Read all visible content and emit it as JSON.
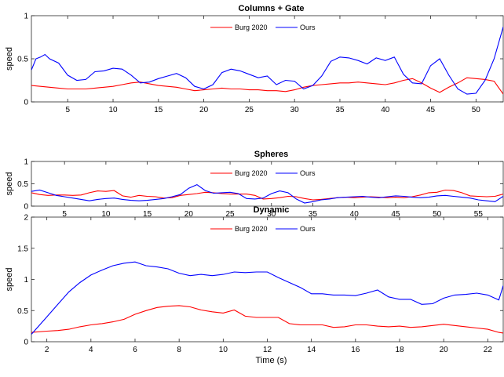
{
  "chart_data": [
    {
      "type": "line",
      "title": "Columns + Gate",
      "xlabel": "",
      "ylabel": "speed",
      "xlim": [
        1,
        53
      ],
      "ylim": [
        0,
        1
      ],
      "xticks": [
        5,
        10,
        15,
        20,
        25,
        30,
        35,
        40,
        45,
        50
      ],
      "yticks": [
        0,
        0.5,
        1
      ],
      "legend": "top-center",
      "series": [
        {
          "name": "Burg 2020",
          "color": "#ff0000",
          "x": [
            1,
            2,
            3,
            4,
            5,
            6,
            7,
            8,
            9,
            10,
            11,
            12,
            13,
            14,
            15,
            16,
            17,
            18,
            19,
            20,
            21,
            22,
            23,
            24,
            25,
            26,
            27,
            28,
            29,
            30,
            31,
            32,
            33,
            34,
            35,
            36,
            37,
            38,
            39,
            40,
            41,
            42,
            43,
            44,
            45,
            46,
            47,
            48,
            49,
            50,
            51,
            52,
            53
          ],
          "y": [
            0.19,
            0.18,
            0.17,
            0.16,
            0.15,
            0.15,
            0.15,
            0.16,
            0.17,
            0.18,
            0.2,
            0.22,
            0.23,
            0.21,
            0.19,
            0.18,
            0.17,
            0.15,
            0.13,
            0.14,
            0.15,
            0.16,
            0.15,
            0.15,
            0.14,
            0.14,
            0.13,
            0.13,
            0.12,
            0.14,
            0.17,
            0.19,
            0.2,
            0.21,
            0.22,
            0.22,
            0.23,
            0.22,
            0.21,
            0.2,
            0.22,
            0.25,
            0.27,
            0.22,
            0.16,
            0.11,
            0.17,
            0.22,
            0.28,
            0.27,
            0.26,
            0.24,
            0.09
          ]
        },
        {
          "name": "Ours",
          "color": "#0000ff",
          "x": [
            1,
            1.5,
            2,
            2.5,
            3,
            4,
            5,
            6,
            7,
            8,
            9,
            10,
            11,
            12,
            13,
            14,
            15,
            16,
            17,
            18,
            19,
            20,
            21,
            22,
            23,
            24,
            25,
            26,
            27,
            28,
            29,
            30,
            31,
            32,
            33,
            34,
            35,
            36,
            37,
            38,
            39,
            40,
            41,
            42,
            43,
            44,
            45,
            46,
            47,
            48,
            49,
            50,
            51,
            52,
            53
          ],
          "y": [
            0.37,
            0.5,
            0.52,
            0.55,
            0.5,
            0.45,
            0.31,
            0.25,
            0.26,
            0.35,
            0.36,
            0.39,
            0.38,
            0.31,
            0.22,
            0.23,
            0.27,
            0.3,
            0.33,
            0.28,
            0.18,
            0.15,
            0.2,
            0.34,
            0.38,
            0.36,
            0.32,
            0.28,
            0.3,
            0.2,
            0.25,
            0.24,
            0.15,
            0.19,
            0.3,
            0.47,
            0.52,
            0.51,
            0.48,
            0.44,
            0.51,
            0.48,
            0.52,
            0.32,
            0.22,
            0.21,
            0.42,
            0.5,
            0.31,
            0.15,
            0.09,
            0.1,
            0.25,
            0.5,
            0.87
          ]
        }
      ]
    },
    {
      "type": "line",
      "title": "Spheres",
      "xlabel": "",
      "ylabel": "speed",
      "xlim": [
        1,
        58
      ],
      "ylim": [
        0,
        1
      ],
      "xticks": [
        5,
        10,
        15,
        20,
        25,
        30,
        35,
        40,
        45,
        50,
        55
      ],
      "yticks": [
        0,
        0.5,
        1
      ],
      "legend": "top-center",
      "series": [
        {
          "name": "Burg 2020",
          "color": "#ff0000",
          "x": [
            1,
            2,
            3,
            4,
            5,
            6,
            7,
            8,
            9,
            10,
            11,
            12,
            13,
            14,
            15,
            16,
            17,
            18,
            19,
            20,
            21,
            22,
            23,
            24,
            25,
            26,
            27,
            28,
            29,
            30,
            31,
            32,
            33,
            34,
            35,
            36,
            37,
            38,
            39,
            40,
            41,
            42,
            43,
            44,
            45,
            46,
            47,
            48,
            49,
            50,
            51,
            52,
            53,
            54,
            55,
            56,
            57,
            58
          ],
          "y": [
            0.3,
            0.26,
            0.24,
            0.25,
            0.25,
            0.24,
            0.25,
            0.3,
            0.34,
            0.33,
            0.35,
            0.23,
            0.2,
            0.24,
            0.22,
            0.21,
            0.18,
            0.19,
            0.24,
            0.26,
            0.28,
            0.31,
            0.3,
            0.28,
            0.27,
            0.27,
            0.27,
            0.24,
            0.16,
            0.17,
            0.19,
            0.22,
            0.21,
            0.17,
            0.14,
            0.15,
            0.17,
            0.19,
            0.2,
            0.19,
            0.2,
            0.21,
            0.2,
            0.19,
            0.2,
            0.19,
            0.21,
            0.25,
            0.3,
            0.31,
            0.36,
            0.35,
            0.3,
            0.23,
            0.22,
            0.21,
            0.22,
            0.27
          ]
        },
        {
          "name": "Ours",
          "color": "#0000ff",
          "x": [
            1,
            2,
            3,
            4,
            5,
            6,
            7,
            8,
            9,
            10,
            11,
            12,
            13,
            14,
            15,
            16,
            17,
            18,
            19,
            20,
            21,
            22,
            23,
            24,
            25,
            26,
            27,
            28,
            29,
            30,
            31,
            32,
            33,
            34,
            35,
            36,
            37,
            38,
            39,
            40,
            41,
            42,
            43,
            44,
            45,
            46,
            47,
            48,
            49,
            50,
            51,
            52,
            53,
            54,
            55,
            56,
            57,
            58
          ],
          "y": [
            0.33,
            0.36,
            0.3,
            0.24,
            0.21,
            0.18,
            0.15,
            0.12,
            0.15,
            0.17,
            0.18,
            0.15,
            0.13,
            0.12,
            0.13,
            0.15,
            0.17,
            0.21,
            0.26,
            0.4,
            0.48,
            0.35,
            0.29,
            0.3,
            0.31,
            0.28,
            0.17,
            0.16,
            0.18,
            0.28,
            0.34,
            0.3,
            0.16,
            0.07,
            0.1,
            0.14,
            0.16,
            0.19,
            0.2,
            0.21,
            0.22,
            0.2,
            0.19,
            0.21,
            0.23,
            0.22,
            0.2,
            0.19,
            0.2,
            0.23,
            0.24,
            0.22,
            0.2,
            0.18,
            0.14,
            0.12,
            0.1,
            0.22
          ]
        }
      ]
    },
    {
      "type": "line",
      "title": "Dynamic",
      "xlabel": "Time (s)",
      "ylabel": "speed",
      "xlim": [
        1.3,
        22.7
      ],
      "ylim": [
        0,
        2
      ],
      "xticks": [
        2,
        4,
        6,
        8,
        10,
        12,
        14,
        16,
        18,
        20,
        22
      ],
      "yticks": [
        0,
        0.5,
        1,
        1.5,
        2
      ],
      "legend": "top-center",
      "series": [
        {
          "name": "Burg 2020",
          "color": "#ff0000",
          "x": [
            1.3,
            2,
            2.5,
            3,
            3.5,
            4,
            4.5,
            5,
            5.5,
            6,
            6.5,
            7,
            7.5,
            8,
            8.5,
            9,
            9.5,
            10,
            10.5,
            11,
            11.5,
            12,
            12.5,
            13,
            13.5,
            14,
            14.5,
            15,
            15.5,
            16,
            16.5,
            17,
            17.5,
            18,
            18.5,
            19,
            19.5,
            20,
            20.5,
            21,
            21.5,
            22,
            22.5,
            22.7
          ],
          "y": [
            0.15,
            0.17,
            0.18,
            0.2,
            0.24,
            0.27,
            0.29,
            0.32,
            0.36,
            0.44,
            0.5,
            0.55,
            0.57,
            0.58,
            0.56,
            0.51,
            0.48,
            0.46,
            0.51,
            0.41,
            0.39,
            0.39,
            0.39,
            0.29,
            0.27,
            0.27,
            0.27,
            0.23,
            0.24,
            0.27,
            0.27,
            0.25,
            0.24,
            0.25,
            0.23,
            0.24,
            0.26,
            0.28,
            0.26,
            0.24,
            0.22,
            0.2,
            0.15,
            0.14
          ]
        },
        {
          "name": "Ours",
          "color": "#0000ff",
          "x": [
            1.3,
            2,
            2.5,
            3,
            3.5,
            4,
            4.5,
            5,
            5.5,
            6,
            6.5,
            7,
            7.5,
            8,
            8.5,
            9,
            9.5,
            10,
            10.5,
            11,
            11.5,
            12,
            12.5,
            13,
            13.5,
            14,
            14.5,
            15,
            15.5,
            16,
            16.5,
            17,
            17.5,
            18,
            18.5,
            19,
            19.5,
            20,
            20.5,
            21,
            21.5,
            22,
            22.5,
            22.7
          ],
          "y": [
            0.12,
            0.4,
            0.6,
            0.8,
            0.95,
            1.07,
            1.15,
            1.22,
            1.26,
            1.28,
            1.22,
            1.2,
            1.17,
            1.1,
            1.06,
            1.08,
            1.06,
            1.08,
            1.12,
            1.11,
            1.12,
            1.12,
            1.03,
            0.95,
            0.87,
            0.77,
            0.77,
            0.75,
            0.75,
            0.74,
            0.78,
            0.83,
            0.72,
            0.68,
            0.68,
            0.6,
            0.61,
            0.7,
            0.75,
            0.76,
            0.78,
            0.75,
            0.67,
            0.9
          ]
        }
      ]
    }
  ]
}
